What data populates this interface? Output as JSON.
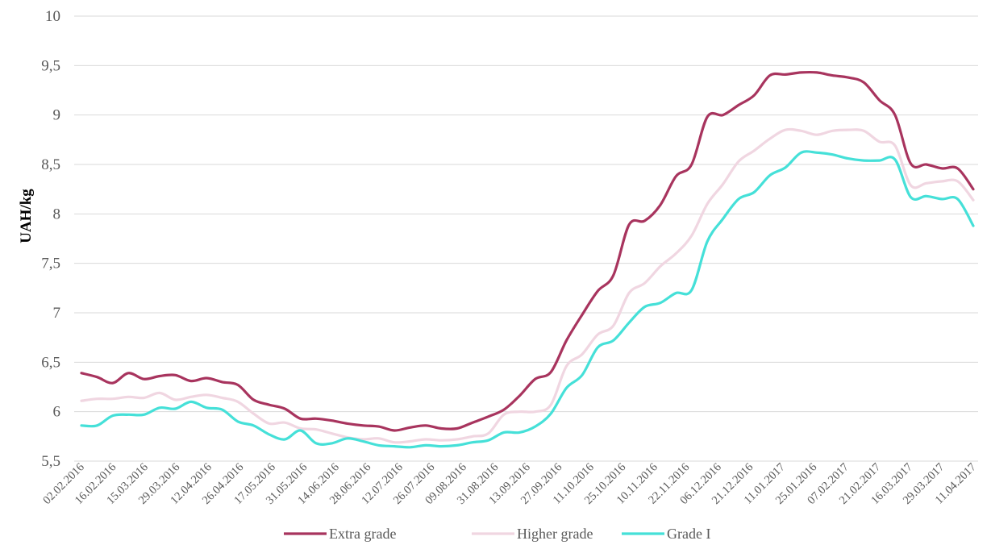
{
  "chart_data": {
    "type": "line",
    "ylabel": "UAH/kg",
    "xlabel": "",
    "ylim": [
      5.5,
      10
    ],
    "yticks": [
      "5,5",
      "6",
      "6,5",
      "7",
      "7,5",
      "8",
      "8,5",
      "9",
      "9,5",
      "10"
    ],
    "grid": "horizontal",
    "legend": "bottom",
    "x_tick_labels": [
      "02.02.2016",
      "16.02.2016",
      "15.03.2016",
      "29.03.2016",
      "12.04.2016",
      "26.04.2016",
      "17.05.2016",
      "31.05.2016",
      "14.06.2016",
      "28.06.2016",
      "12.07.2016",
      "26.07.2016",
      "09.08.2016",
      "31.08.2016",
      "13.09.2016",
      "27.09.2016",
      "11.10.2016",
      "25.10.2016",
      "10.11.2016",
      "22.11.2016",
      "06.12.2016",
      "21.12.2016",
      "11.01.2017",
      "25.01.2016",
      "07.02.2017",
      "21.02.2017",
      "16.03.2017",
      "29.03.2017",
      "11.04.2017"
    ],
    "series": [
      {
        "name": "Extra grade",
        "color": "#a8345e",
        "values": [
          6.39,
          6.35,
          6.29,
          6.39,
          6.33,
          6.36,
          6.37,
          6.31,
          6.34,
          6.3,
          6.27,
          6.12,
          6.07,
          6.03,
          5.93,
          5.93,
          5.91,
          5.88,
          5.86,
          5.85,
          5.81,
          5.84,
          5.86,
          5.83,
          5.83,
          5.89,
          5.95,
          6.02,
          6.16,
          6.33,
          6.4,
          6.72,
          6.98,
          7.22,
          7.38,
          7.89,
          7.93,
          8.09,
          8.38,
          8.5,
          8.98,
          9.0,
          9.1,
          9.2,
          9.4,
          9.41,
          9.43,
          9.43,
          9.4,
          9.38,
          9.33,
          9.15,
          9.0,
          8.51,
          8.5,
          8.46,
          8.46,
          8.25
        ]
      },
      {
        "name": "Higher grade",
        "color": "#f0d6e1",
        "values": [
          6.11,
          6.13,
          6.13,
          6.15,
          6.14,
          6.19,
          6.12,
          6.15,
          6.17,
          6.14,
          6.1,
          5.98,
          5.88,
          5.89,
          5.83,
          5.82,
          5.78,
          5.74,
          5.72,
          5.73,
          5.69,
          5.7,
          5.72,
          5.71,
          5.72,
          5.75,
          5.78,
          5.97,
          6.0,
          6.0,
          6.07,
          6.46,
          6.58,
          6.78,
          6.87,
          7.2,
          7.3,
          7.47,
          7.6,
          7.78,
          8.1,
          8.3,
          8.53,
          8.64,
          8.76,
          8.85,
          8.84,
          8.8,
          8.84,
          8.85,
          8.84,
          8.73,
          8.69,
          8.29,
          8.31,
          8.33,
          8.33,
          8.14
        ]
      },
      {
        "name": "Grade I",
        "color": "#45e0d8",
        "values": [
          5.86,
          5.86,
          5.96,
          5.97,
          5.97,
          6.04,
          6.03,
          6.1,
          6.04,
          6.02,
          5.9,
          5.86,
          5.77,
          5.72,
          5.81,
          5.68,
          5.68,
          5.73,
          5.7,
          5.66,
          5.65,
          5.64,
          5.66,
          5.65,
          5.66,
          5.69,
          5.71,
          5.79,
          5.79,
          5.85,
          5.98,
          6.24,
          6.37,
          6.65,
          6.72,
          6.9,
          7.06,
          7.1,
          7.2,
          7.23,
          7.72,
          7.95,
          8.15,
          8.22,
          8.39,
          8.47,
          8.62,
          8.62,
          8.6,
          8.56,
          8.54,
          8.54,
          8.55,
          8.17,
          8.18,
          8.15,
          8.15,
          7.88
        ]
      }
    ]
  }
}
